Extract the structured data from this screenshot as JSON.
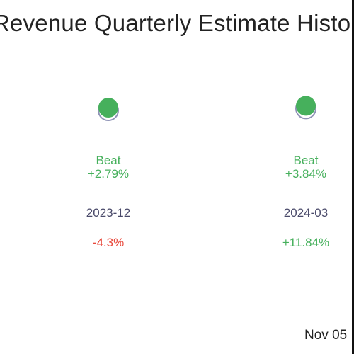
{
  "title": "Revenue Quarterly Estimate History",
  "date_stamp": "Nov 05",
  "colors": {
    "beat": "#46b05c",
    "miss": "#e8493c",
    "period": "#4a4a6a",
    "marker_shadow": "#8f93b6",
    "background": "#ffffff"
  },
  "chart_data": {
    "type": "scatter",
    "title": "Revenue Quarterly Estimate History",
    "categories": [
      "2023-12",
      "2024-03"
    ],
    "items": [
      {
        "period": "2023-12",
        "result": "Beat",
        "surprise": "+2.79%",
        "surprise_value": 2.79,
        "change": "-4.3%",
        "change_value": -4.3
      },
      {
        "period": "2024-03",
        "result": "Beat",
        "surprise": "+3.84%",
        "surprise_value": 3.84,
        "change": "+11.84%",
        "change_value": 11.84
      }
    ],
    "grid": false,
    "legend": "none"
  }
}
